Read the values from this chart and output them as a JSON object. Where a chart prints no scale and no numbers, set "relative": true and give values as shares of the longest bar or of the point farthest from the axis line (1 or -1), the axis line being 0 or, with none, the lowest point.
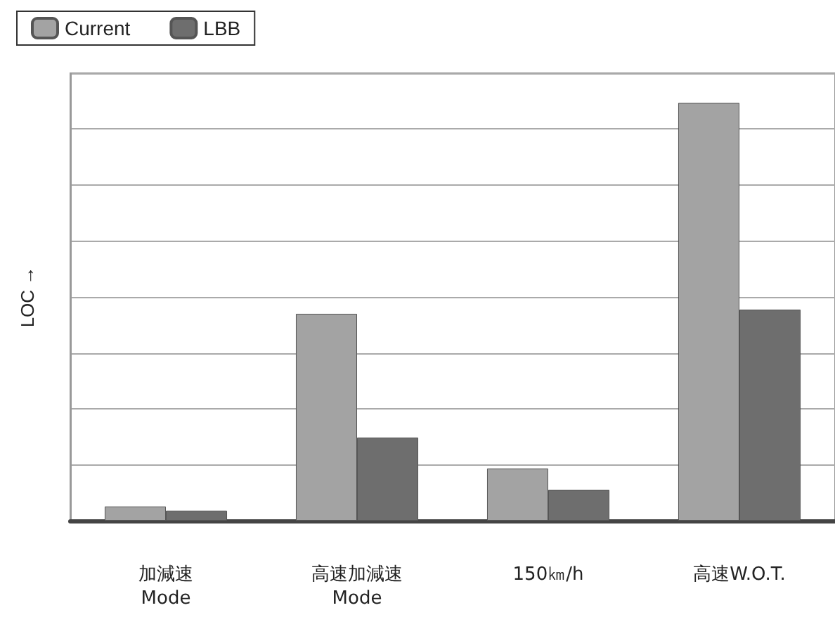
{
  "chart_data": {
    "type": "bar",
    "relative": true,
    "ylabel": "LOC →",
    "categories": [
      "加減速\nMode",
      "高速加減速\nMode",
      "150㎞/h",
      "高速W.O.T."
    ],
    "series": [
      {
        "name": "Current",
        "color": "#a3a3a3",
        "values": [
          0.034,
          0.495,
          0.125,
          1
        ]
      },
      {
        "name": "LBB",
        "color": "#6e6e6e",
        "values": [
          0.024,
          0.199,
          0.074,
          0.505
        ]
      }
    ],
    "grid": "y",
    "legend": "top left"
  }
}
